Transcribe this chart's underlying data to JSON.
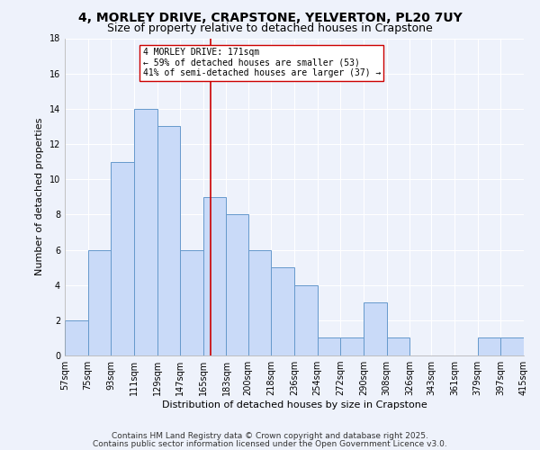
{
  "title": "4, MORLEY DRIVE, CRAPSTONE, YELVERTON, PL20 7UY",
  "subtitle": "Size of property relative to detached houses in Crapstone",
  "xlabel": "Distribution of detached houses by size in Crapstone",
  "ylabel": "Number of detached properties",
  "bins": [
    57,
    75,
    93,
    111,
    129,
    147,
    165,
    183,
    200,
    218,
    236,
    254,
    272,
    290,
    308,
    326,
    343,
    361,
    379,
    397,
    415
  ],
  "counts": [
    2,
    6,
    11,
    14,
    13,
    6,
    9,
    8,
    6,
    5,
    4,
    1,
    1,
    3,
    1,
    0,
    0,
    0,
    1,
    1
  ],
  "bar_facecolor": "#c9daf8",
  "bar_edgecolor": "#6699cc",
  "bar_linewidth": 0.7,
  "vline_x": 171,
  "vline_color": "#cc0000",
  "vline_linewidth": 1.2,
  "annotation_title": "4 MORLEY DRIVE: 171sqm",
  "annotation_line1": "← 59% of detached houses are smaller (53)",
  "annotation_line2": "41% of semi-detached houses are larger (37) →",
  "annotation_box_edgecolor": "#cc0000",
  "annotation_box_facecolor": "#ffffff",
  "ylim": [
    0,
    18
  ],
  "yticks": [
    0,
    2,
    4,
    6,
    8,
    10,
    12,
    14,
    16,
    18
  ],
  "tick_labels": [
    "57sqm",
    "75sqm",
    "93sqm",
    "111sqm",
    "129sqm",
    "147sqm",
    "165sqm",
    "183sqm",
    "200sqm",
    "218sqm",
    "236sqm",
    "254sqm",
    "272sqm",
    "290sqm",
    "308sqm",
    "326sqm",
    "343sqm",
    "361sqm",
    "379sqm",
    "397sqm",
    "415sqm"
  ],
  "footnote1": "Contains HM Land Registry data © Crown copyright and database right 2025.",
  "footnote2": "Contains public sector information licensed under the Open Government Licence v3.0.",
  "bg_color": "#eef2fb",
  "plot_bg_color": "#eef2fb",
  "grid_color": "#ffffff",
  "title_fontsize": 10,
  "subtitle_fontsize": 9,
  "label_fontsize": 8,
  "tick_fontsize": 7,
  "footnote_fontsize": 6.5
}
